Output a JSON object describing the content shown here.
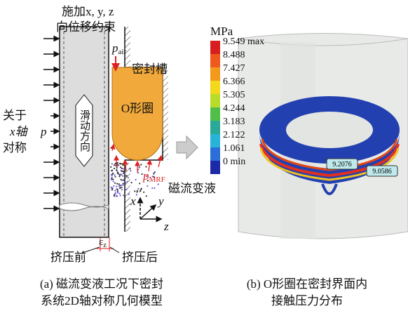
{
  "left_panel": {
    "constraint_line1": "施加x, y, z",
    "constraint_line2": "向位移约束",
    "p_air": {
      "symbol": "p",
      "subscript": "air"
    },
    "groove_label": "密封槽",
    "oring_label": "O形圈",
    "symmetry_line1": "关于",
    "symmetry_line2": "x轴",
    "symmetry_line3": "对称",
    "pressure_label": "p",
    "sliding_label": "滑动方向",
    "p_mrf": {
      "symbol": "p",
      "subscript": "MRF"
    },
    "mrf_label": "磁流变液",
    "axis_x": "x",
    "axis_y": "y",
    "axis_z": "z",
    "epsilon": {
      "symbol": "ε",
      "subscript": "z"
    },
    "before_label": "挤压前",
    "after_label": "挤压后"
  },
  "right_panel": {
    "unit": "MPa",
    "colorbar_labels": [
      "9.549 max",
      "8.488",
      "7.427",
      "6.366",
      "5.305",
      "4.244",
      "3.183",
      "2.122",
      "1.061",
      "0 min"
    ],
    "probe_1": "9.2076",
    "probe_2": "9.0586"
  },
  "captions": {
    "a_line1": "(a) 磁流变液工况下密封",
    "a_line2": "系统2D轴对称几何模型",
    "b_line1": "(b) O形圈在密封界面内",
    "b_line2": "接触压力分布"
  }
}
